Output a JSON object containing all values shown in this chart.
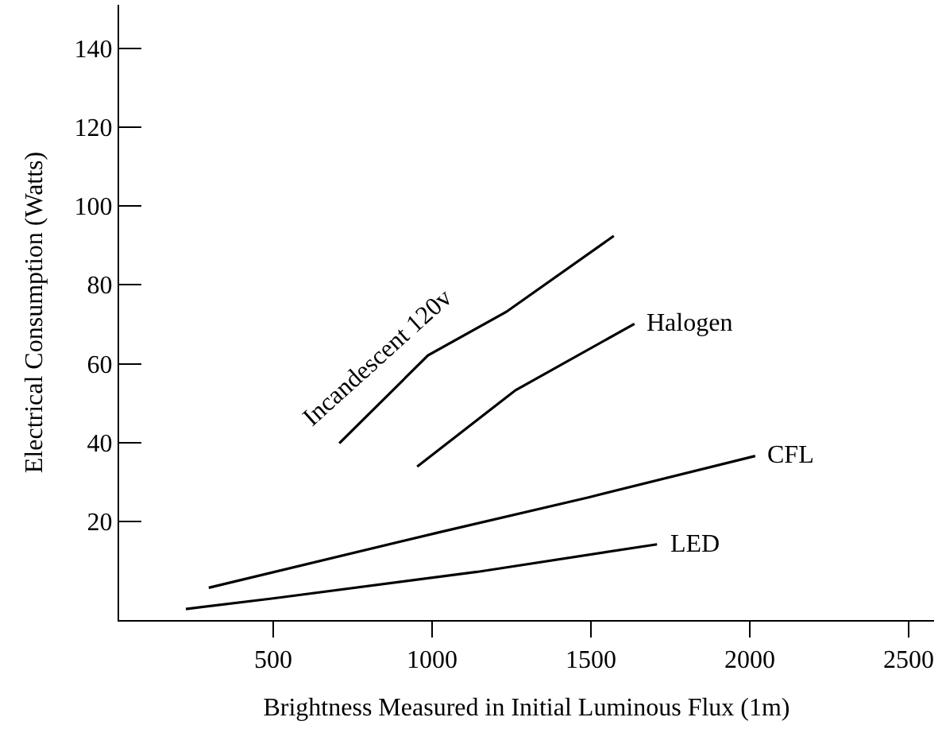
{
  "chart_data": {
    "type": "line",
    "xlabel": "Brightness Measured in Initial Luminous Flux (1m)",
    "ylabel": "Electrical Consumption (Watts)",
    "xlim": [
      15,
      2580
    ],
    "xticks": [
      500,
      1000,
      1500,
      2000,
      2500
    ],
    "ylim": [
      -5,
      151
    ],
    "yticks": [
      20,
      40,
      60,
      80,
      100,
      120,
      140
    ],
    "grid": false,
    "legend": false,
    "marker": "none",
    "line_style": "solid",
    "series": [
      {
        "name": "Incandescent 120v",
        "color": "#000000",
        "x": [
          708,
          987,
          1233,
          1572
        ],
        "values": [
          39.8,
          62.1,
          73.1,
          92.4
        ]
      },
      {
        "name": "Halogen",
        "color": "#000000",
        "x": [
          953,
          1263,
          1637
        ],
        "values": [
          33.9,
          53.3,
          70.1
        ]
      },
      {
        "name": "CFL",
        "color": "#000000",
        "x": [
          297,
          1025,
          1492,
          2017
        ],
        "values": [
          3.2,
          17.3,
          26.1,
          36.6
        ]
      },
      {
        "name": "LED",
        "color": "#000000",
        "x": [
          225,
          500,
          1141,
          1708
        ],
        "values": [
          -2.2,
          0.5,
          7.2,
          14.2
        ]
      }
    ]
  }
}
